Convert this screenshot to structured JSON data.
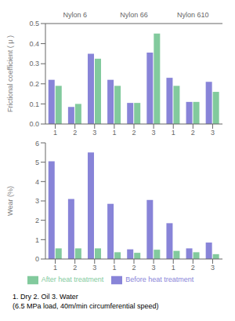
{
  "chart_data": [
    {
      "type": "bar",
      "groups": [
        "Nylon 6",
        "Nylon 66",
        "Nylon 610"
      ],
      "categories": [
        "1",
        "2",
        "3",
        "1",
        "2",
        "3",
        "1",
        "2",
        "3"
      ],
      "series": [
        {
          "name": "Before heat treatment",
          "color": "#8884d8",
          "values": [
            0.22,
            0.085,
            0.35,
            0.22,
            0.105,
            0.355,
            0.23,
            0.11,
            0.21
          ]
        },
        {
          "name": "After heat treatment",
          "color": "#82ca9d",
          "values": [
            0.19,
            0.1,
            0.325,
            0.19,
            0.105,
            0.45,
            0.19,
            0.11,
            0.16
          ]
        }
      ],
      "ylabel": "Frictional coefficient ( μ )",
      "ylim": [
        0,
        0.5
      ],
      "yticks": [
        {
          "value": 0,
          "label": "0.0"
        },
        0.1,
        0.2,
        0.3,
        0.4,
        0.5
      ],
      "grid": false
    },
    {
      "type": "bar",
      "categories": [
        "1",
        "2",
        "3",
        "1",
        "2",
        "3",
        "1",
        "2",
        "3"
      ],
      "series": [
        {
          "name": "Before heat treatment",
          "color": "#8884d8",
          "values": [
            5.05,
            3.1,
            5.5,
            2.85,
            0.5,
            3.05,
            1.85,
            0.55,
            0.85
          ]
        },
        {
          "name": "After heat treatment",
          "color": "#82ca9d",
          "values": [
            0.55,
            0.55,
            0.55,
            0.35,
            0.32,
            0.48,
            0.42,
            0.35,
            0.25
          ]
        }
      ],
      "ylabel": "Wear (%)",
      "ylim": [
        0,
        6
      ],
      "yticks": [
        0,
        1,
        2,
        3,
        4,
        5,
        6
      ],
      "grid": false,
      "legend": "bottom",
      "annotations": [
        "1. Dry  2. Oil  3. Water",
        "(6.5 MPa load, 40m/min circumferential speed)"
      ]
    }
  ]
}
